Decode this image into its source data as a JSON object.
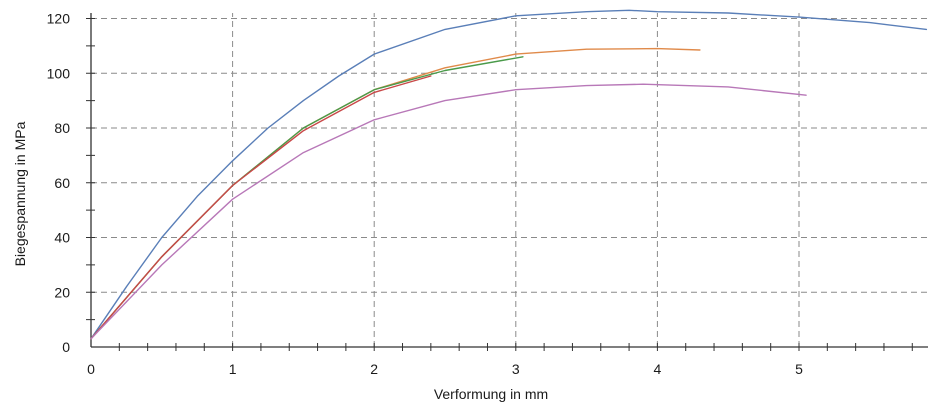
{
  "chart_data": {
    "type": "line",
    "xlabel": "Verformung in mm",
    "ylabel": "Biegespannung in MPa",
    "xlim": [
      0,
      5.95
    ],
    "ylim": [
      0,
      122
    ],
    "x_ticks": [
      0,
      1,
      2,
      3,
      4,
      5
    ],
    "y_ticks": [
      0,
      20,
      40,
      60,
      80,
      100,
      120
    ],
    "grid": true,
    "series": [
      {
        "color": "#5a7fb8",
        "x": [
          0,
          0.25,
          0.5,
          0.75,
          1.0,
          1.25,
          1.5,
          1.75,
          2.0,
          2.5,
          3.0,
          3.5,
          3.8,
          4.0,
          4.5,
          5.0,
          5.5,
          5.9
        ],
        "y": [
          3,
          22,
          40,
          55,
          68,
          80,
          90,
          99,
          107,
          116,
          121,
          122.5,
          123,
          122.5,
          122,
          120.5,
          118.5,
          116
        ]
      },
      {
        "color": "#e08a4a",
        "x": [
          0,
          0.5,
          1.0,
          1.5,
          2.0,
          2.5,
          3.0,
          3.5,
          4.0,
          4.3
        ],
        "y": [
          3,
          33,
          59,
          80,
          94,
          102,
          107,
          108.8,
          109,
          108.5
        ]
      },
      {
        "color": "#4a9a4a",
        "x": [
          0,
          0.5,
          1.0,
          1.5,
          2.0,
          2.5,
          3.05
        ],
        "y": [
          3,
          33,
          59,
          80,
          94,
          101,
          106
        ]
      },
      {
        "color": "#c84848",
        "x": [
          0,
          0.5,
          1.0,
          1.5,
          2.0,
          2.4
        ],
        "y": [
          3,
          33,
          59,
          79,
          93,
          99
        ]
      },
      {
        "color": "#b878b8",
        "x": [
          0,
          0.5,
          1.0,
          1.5,
          2.0,
          2.5,
          3.0,
          3.5,
          3.9,
          4.5,
          5.05
        ],
        "y": [
          3,
          30,
          54,
          71,
          83,
          90,
          94,
          95.5,
          96,
          95,
          92
        ]
      }
    ]
  }
}
